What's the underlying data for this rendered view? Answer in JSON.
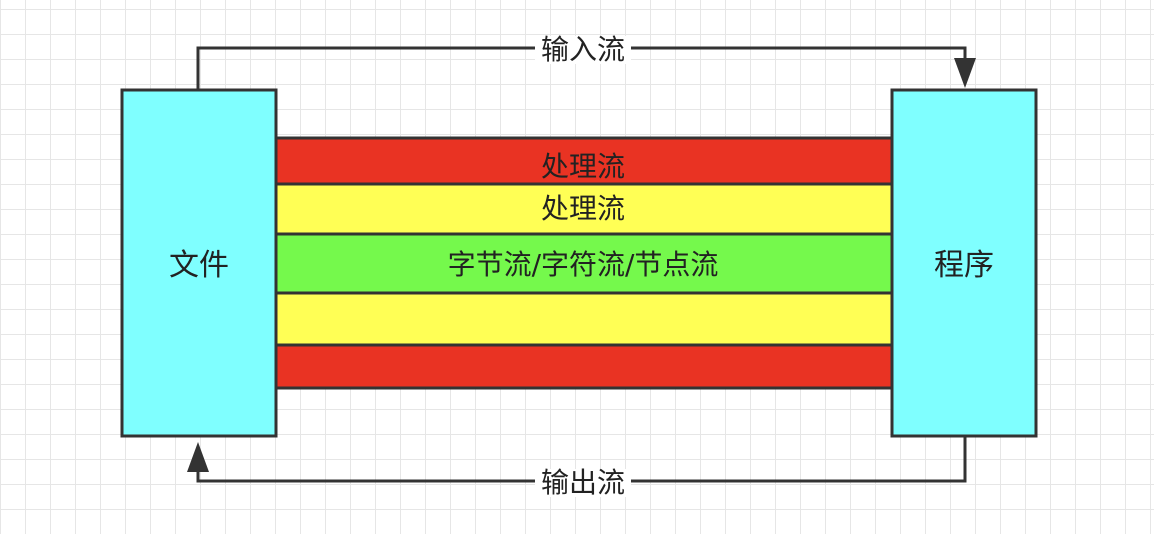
{
  "nodes": {
    "file": {
      "label": "文件",
      "color": "#7fffff"
    },
    "program": {
      "label": "程序",
      "color": "#7fffff"
    }
  },
  "edges": {
    "input": {
      "label": "输入流"
    },
    "output": {
      "label": "输出流"
    }
  },
  "bands": [
    {
      "label": "处理流",
      "color": "#e93323"
    },
    {
      "label": "处理流",
      "color": "#ffff55"
    },
    {
      "label": "字节流/字符流/节点流",
      "color": "#75f94c"
    },
    {
      "label": "",
      "color": "#ffff55"
    },
    {
      "label": "",
      "color": "#e93323"
    }
  ]
}
